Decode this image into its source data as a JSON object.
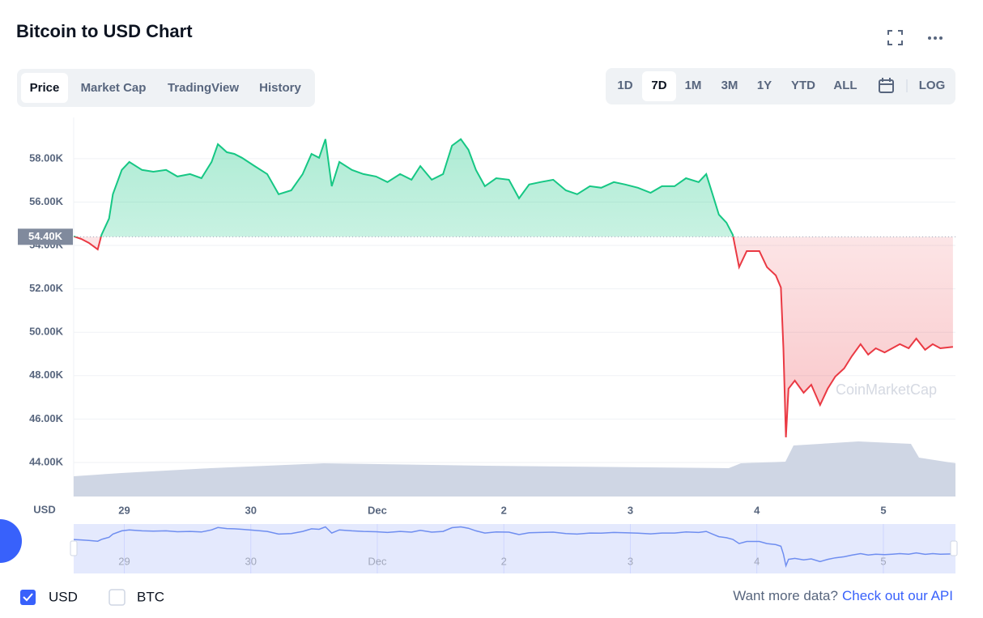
{
  "title": "Bitcoin to USD Chart",
  "tabs": [
    "Price",
    "Market Cap",
    "TradingView",
    "History"
  ],
  "ranges": [
    "1D",
    "7D",
    "1M",
    "3M",
    "1Y",
    "YTD",
    "ALL"
  ],
  "log_button": "LOG",
  "currencies": [
    "USD",
    "BTC"
  ],
  "footer": {
    "prompt": "Want more data?",
    "link": "Check out our API"
  },
  "chart_data": {
    "type": "line",
    "y_label": "USD",
    "watermark": "CoinMarketCap",
    "up_color": "#16c784",
    "down_color": "#ea3943",
    "baseline": {
      "value": 54400,
      "label": "54.40K"
    },
    "grid": true,
    "xlim": [
      28.6,
      35.57
    ],
    "xticks": [
      {
        "value": 29,
        "label": "29"
      },
      {
        "value": 30,
        "label": "30"
      },
      {
        "value": 31,
        "label": "Dec"
      },
      {
        "value": 32,
        "label": "2"
      },
      {
        "value": 33,
        "label": "3"
      },
      {
        "value": 34,
        "label": "4"
      },
      {
        "value": 35,
        "label": "5"
      }
    ],
    "ylim": [
      42430,
      59900
    ],
    "yticks": [
      {
        "value": 44000,
        "label": "44.00K"
      },
      {
        "value": 46000,
        "label": "46.00K"
      },
      {
        "value": 48000,
        "label": "48.00K"
      },
      {
        "value": 50000,
        "label": "50.00K"
      },
      {
        "value": 52000,
        "label": "52.00K"
      },
      {
        "value": 54000,
        "label": "54.00K"
      },
      {
        "value": 56000,
        "label": "56.00K"
      },
      {
        "value": 58000,
        "label": "58.00K"
      }
    ],
    "x": [
      28.6,
      28.66,
      28.72,
      28.79,
      28.82,
      28.88,
      28.91,
      28.98,
      29.04,
      29.14,
      29.23,
      29.33,
      29.42,
      29.52,
      29.61,
      29.69,
      29.74,
      29.81,
      29.87,
      29.93,
      30.03,
      30.13,
      30.22,
      30.32,
      30.41,
      30.48,
      30.54,
      30.59,
      30.64,
      30.7,
      30.8,
      30.89,
      30.99,
      31.08,
      31.18,
      31.27,
      31.34,
      31.43,
      31.52,
      31.59,
      31.66,
      31.72,
      31.78,
      31.85,
      31.94,
      32.04,
      32.12,
      32.2,
      32.29,
      32.39,
      32.49,
      32.58,
      32.68,
      32.77,
      32.87,
      32.96,
      33.06,
      33.16,
      33.25,
      33.35,
      33.44,
      33.54,
      33.6,
      33.65,
      33.7,
      33.76,
      33.81,
      33.86,
      33.92,
      34.02,
      34.08,
      34.15,
      34.19,
      34.21,
      34.23,
      34.25,
      34.3,
      34.37,
      34.43,
      34.5,
      34.56,
      34.62,
      34.69,
      34.75,
      34.82,
      34.88,
      34.94,
      35.01,
      35.07,
      35.13,
      35.2,
      35.26,
      35.33,
      35.39,
      35.45,
      35.55
    ],
    "values": [
      54420,
      54300,
      54120,
      53820,
      54490,
      55240,
      56360,
      57480,
      57850,
      57480,
      57400,
      57480,
      57180,
      57290,
      57100,
      57850,
      58670,
      58300,
      58220,
      58040,
      57660,
      57290,
      56360,
      56540,
      57290,
      58220,
      58040,
      58900,
      56730,
      57850,
      57480,
      57290,
      57180,
      56920,
      57290,
      57030,
      57660,
      57030,
      57290,
      58600,
      58900,
      58410,
      57480,
      56730,
      57100,
      57030,
      56170,
      56810,
      56920,
      57030,
      56540,
      56360,
      56730,
      56660,
      56920,
      56810,
      56660,
      56430,
      56730,
      56730,
      57100,
      56920,
      57290,
      56360,
      55420,
      55050,
      54490,
      53000,
      53740,
      53740,
      53000,
      52620,
      52060,
      49260,
      45160,
      47400,
      47770,
      47210,
      47580,
      46650,
      47400,
      47960,
      48330,
      48890,
      49450,
      48970,
      49260,
      49070,
      49260,
      49450,
      49260,
      49710,
      49190,
      49450,
      49260,
      49330
    ]
  }
}
